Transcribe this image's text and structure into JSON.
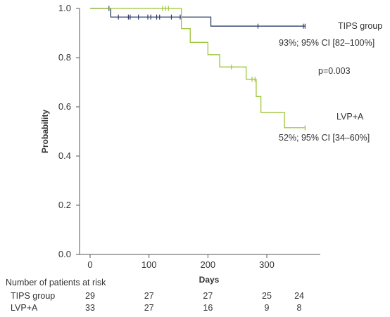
{
  "chart_data": {
    "type": "line",
    "xlabel": "Days",
    "ylabel": "Probability",
    "xlim": [
      -10,
      385
    ],
    "ylim": [
      0,
      1.0
    ],
    "x_ticks": [
      0,
      100,
      200,
      300
    ],
    "y_ticks": [
      0.0,
      0.2,
      0.4,
      0.6,
      0.8,
      1.0
    ],
    "y_tick_labels": [
      "0.0",
      "0.2",
      "0.4",
      "0.6",
      "0.8",
      "1.0"
    ],
    "grid": false,
    "series": [
      {
        "name": "TIPS group",
        "color": "#2b3a67",
        "steps": [
          [
            0,
            1.0
          ],
          [
            35,
            0.965
          ],
          [
            205,
            0.928
          ],
          [
            365,
            0.928
          ]
        ],
        "censor_x": [
          32,
          48,
          65,
          68,
          82,
          98,
          103,
          113,
          118,
          138,
          153,
          285,
          362,
          365
        ]
      },
      {
        "name": "LVP+A",
        "color": "#9dc63b",
        "steps": [
          [
            0,
            1.0
          ],
          [
            155,
            0.918
          ],
          [
            170,
            0.862
          ],
          [
            200,
            0.812
          ],
          [
            220,
            0.762
          ],
          [
            265,
            0.712
          ],
          [
            282,
            0.642
          ],
          [
            290,
            0.577
          ],
          [
            330,
            0.515
          ],
          [
            365,
            0.515
          ]
        ],
        "censor_x": [
          123,
          128,
          133,
          240,
          275,
          280,
          365
        ]
      }
    ],
    "annotations": {
      "tips_label": "TIPS group",
      "tips_ci": "93%; 95% CI [82–100%]",
      "p_value": "p=0.003",
      "lvp_label": "LVP+A",
      "lvp_ci": "52%; 95% CI [34–60%]"
    }
  },
  "risk_table": {
    "title": "Number of patients at risk",
    "columns_x": [
      0,
      100,
      200,
      300,
      355
    ],
    "rows": [
      {
        "label": "TIPS group",
        "values": [
          "29",
          "27",
          "27",
          "25",
          "24"
        ]
      },
      {
        "label": "LVP+A",
        "values": [
          "33",
          "27",
          "16",
          "9",
          "8"
        ]
      }
    ]
  }
}
